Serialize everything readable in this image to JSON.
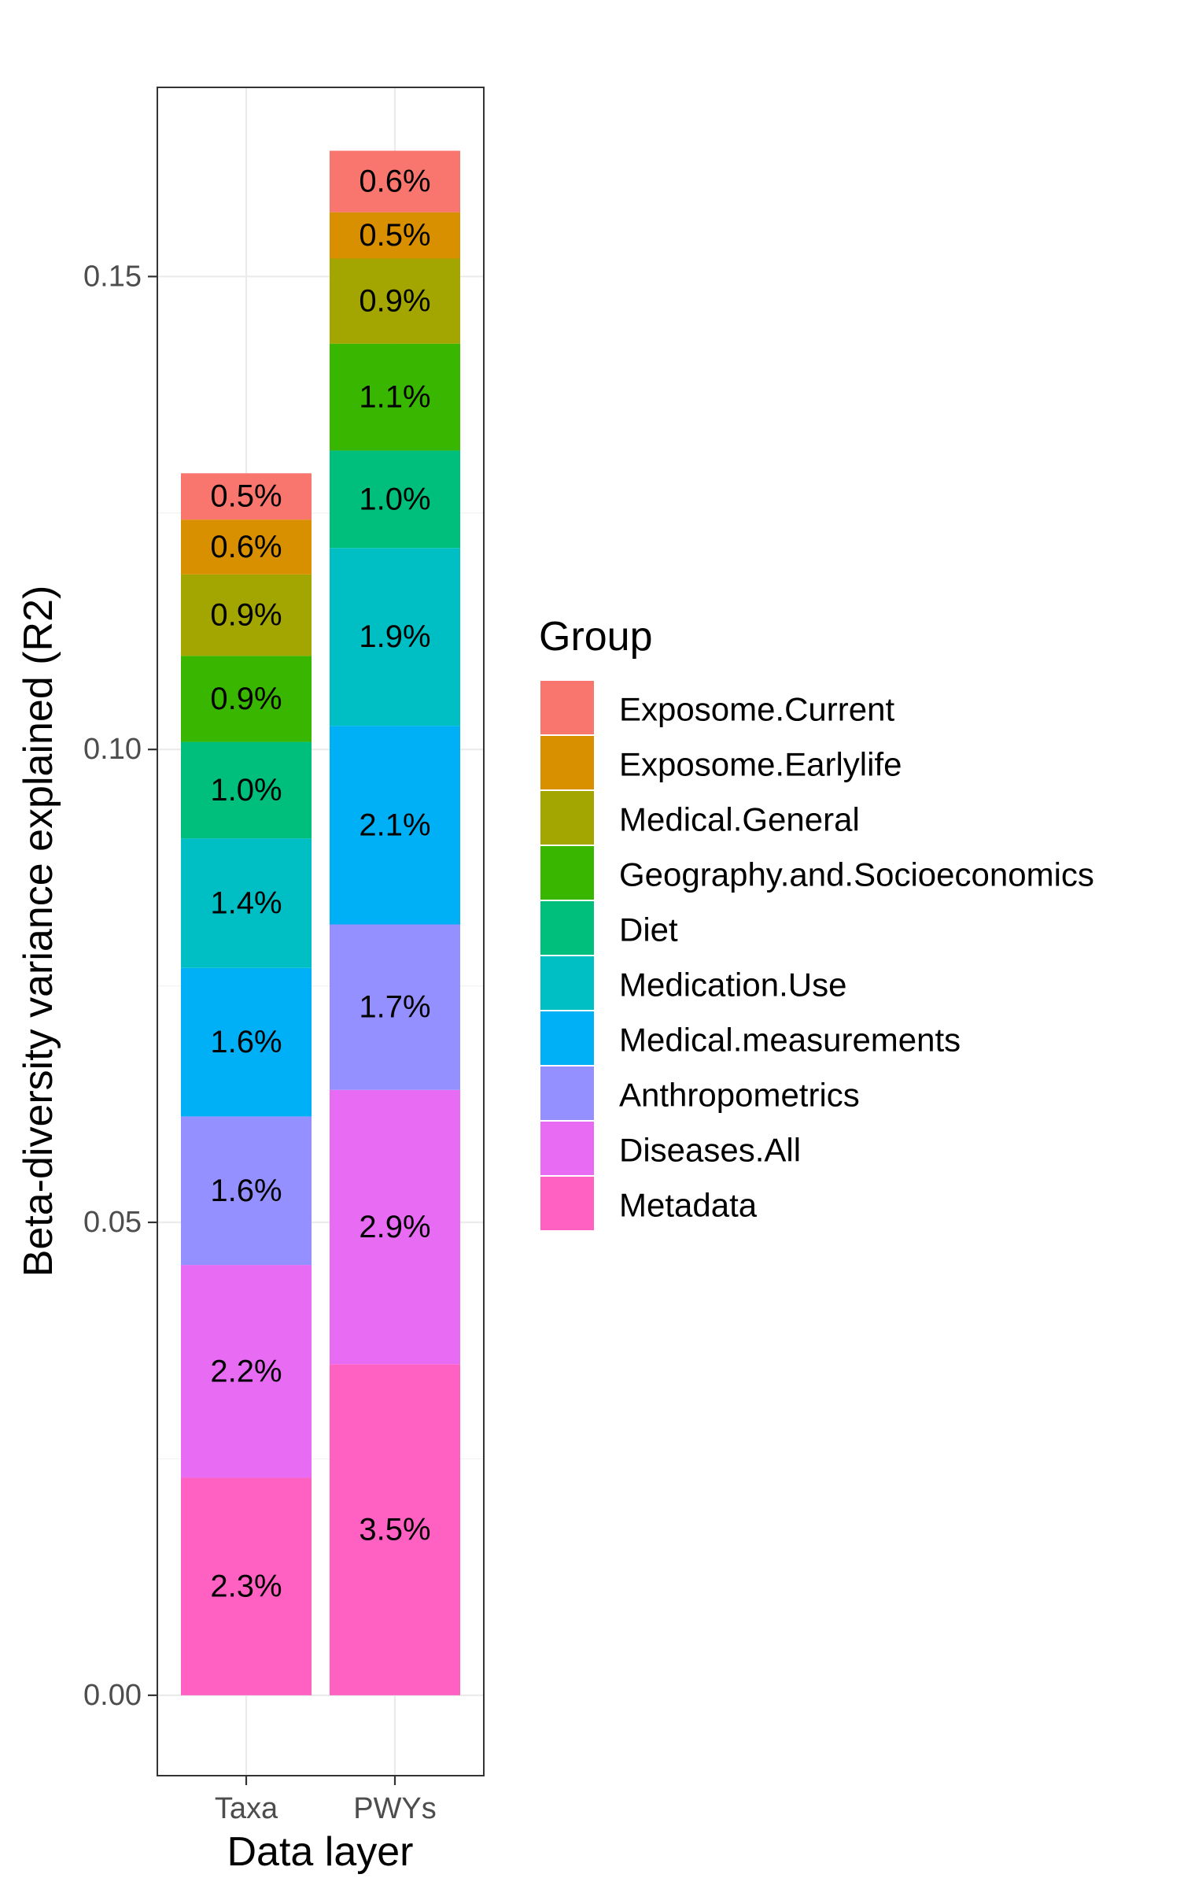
{
  "chart_data": {
    "type": "bar",
    "stacked": true,
    "xlabel": "Data layer",
    "ylabel": "Beta-diversity variance explained (R2)",
    "categories": [
      "Taxa",
      "PWYs"
    ],
    "ylim": [
      -0.0085,
      0.17
    ],
    "yticks": [
      0.0,
      0.05,
      0.1,
      0.15
    ],
    "ytick_labels": [
      "0.00",
      "0.05",
      "0.10",
      "0.15"
    ],
    "legend": {
      "title": "Group",
      "position": "right"
    },
    "grid": true,
    "series": [
      {
        "name": "Metadata",
        "color": "#FF61C3",
        "values": [
          0.023,
          0.035
        ],
        "labels": [
          "2.3%",
          "3.5%"
        ]
      },
      {
        "name": "Diseases.All",
        "color": "#E76BF3",
        "values": [
          0.0225,
          0.029
        ],
        "labels": [
          "2.2%",
          "2.9%"
        ]
      },
      {
        "name": "Anthropometrics",
        "color": "#9590FF",
        "values": [
          0.0157,
          0.0175
        ],
        "labels": [
          "1.6%",
          "1.7%"
        ]
      },
      {
        "name": "Medical.measurements",
        "color": "#00B0F6",
        "values": [
          0.0157,
          0.021
        ],
        "labels": [
          "1.6%",
          "2.1%"
        ]
      },
      {
        "name": "Medication.Use",
        "color": "#00BFC4",
        "values": [
          0.0137,
          0.0188
        ],
        "labels": [
          "1.4%",
          "1.9%"
        ]
      },
      {
        "name": "Diet",
        "color": "#00BF7D",
        "values": [
          0.0102,
          0.0103
        ],
        "labels": [
          "1.0%",
          "1.0%"
        ]
      },
      {
        "name": "Geography.and.Socioeconomics",
        "color": "#39B600",
        "values": [
          0.0091,
          0.0113
        ],
        "labels": [
          "0.9%",
          "1.1%"
        ]
      },
      {
        "name": "Medical.General",
        "color": "#A3A500",
        "values": [
          0.0086,
          0.009
        ],
        "labels": [
          "0.9%",
          "0.9%"
        ]
      },
      {
        "name": "Exposome.Earlylife",
        "color": "#D89000",
        "values": [
          0.0058,
          0.0049
        ],
        "labels": [
          "0.6%",
          "0.5%"
        ]
      },
      {
        "name": "Exposome.Current",
        "color": "#F8766D",
        "values": [
          0.0049,
          0.0065
        ],
        "labels": [
          "0.5%",
          "0.6%"
        ]
      }
    ]
  }
}
